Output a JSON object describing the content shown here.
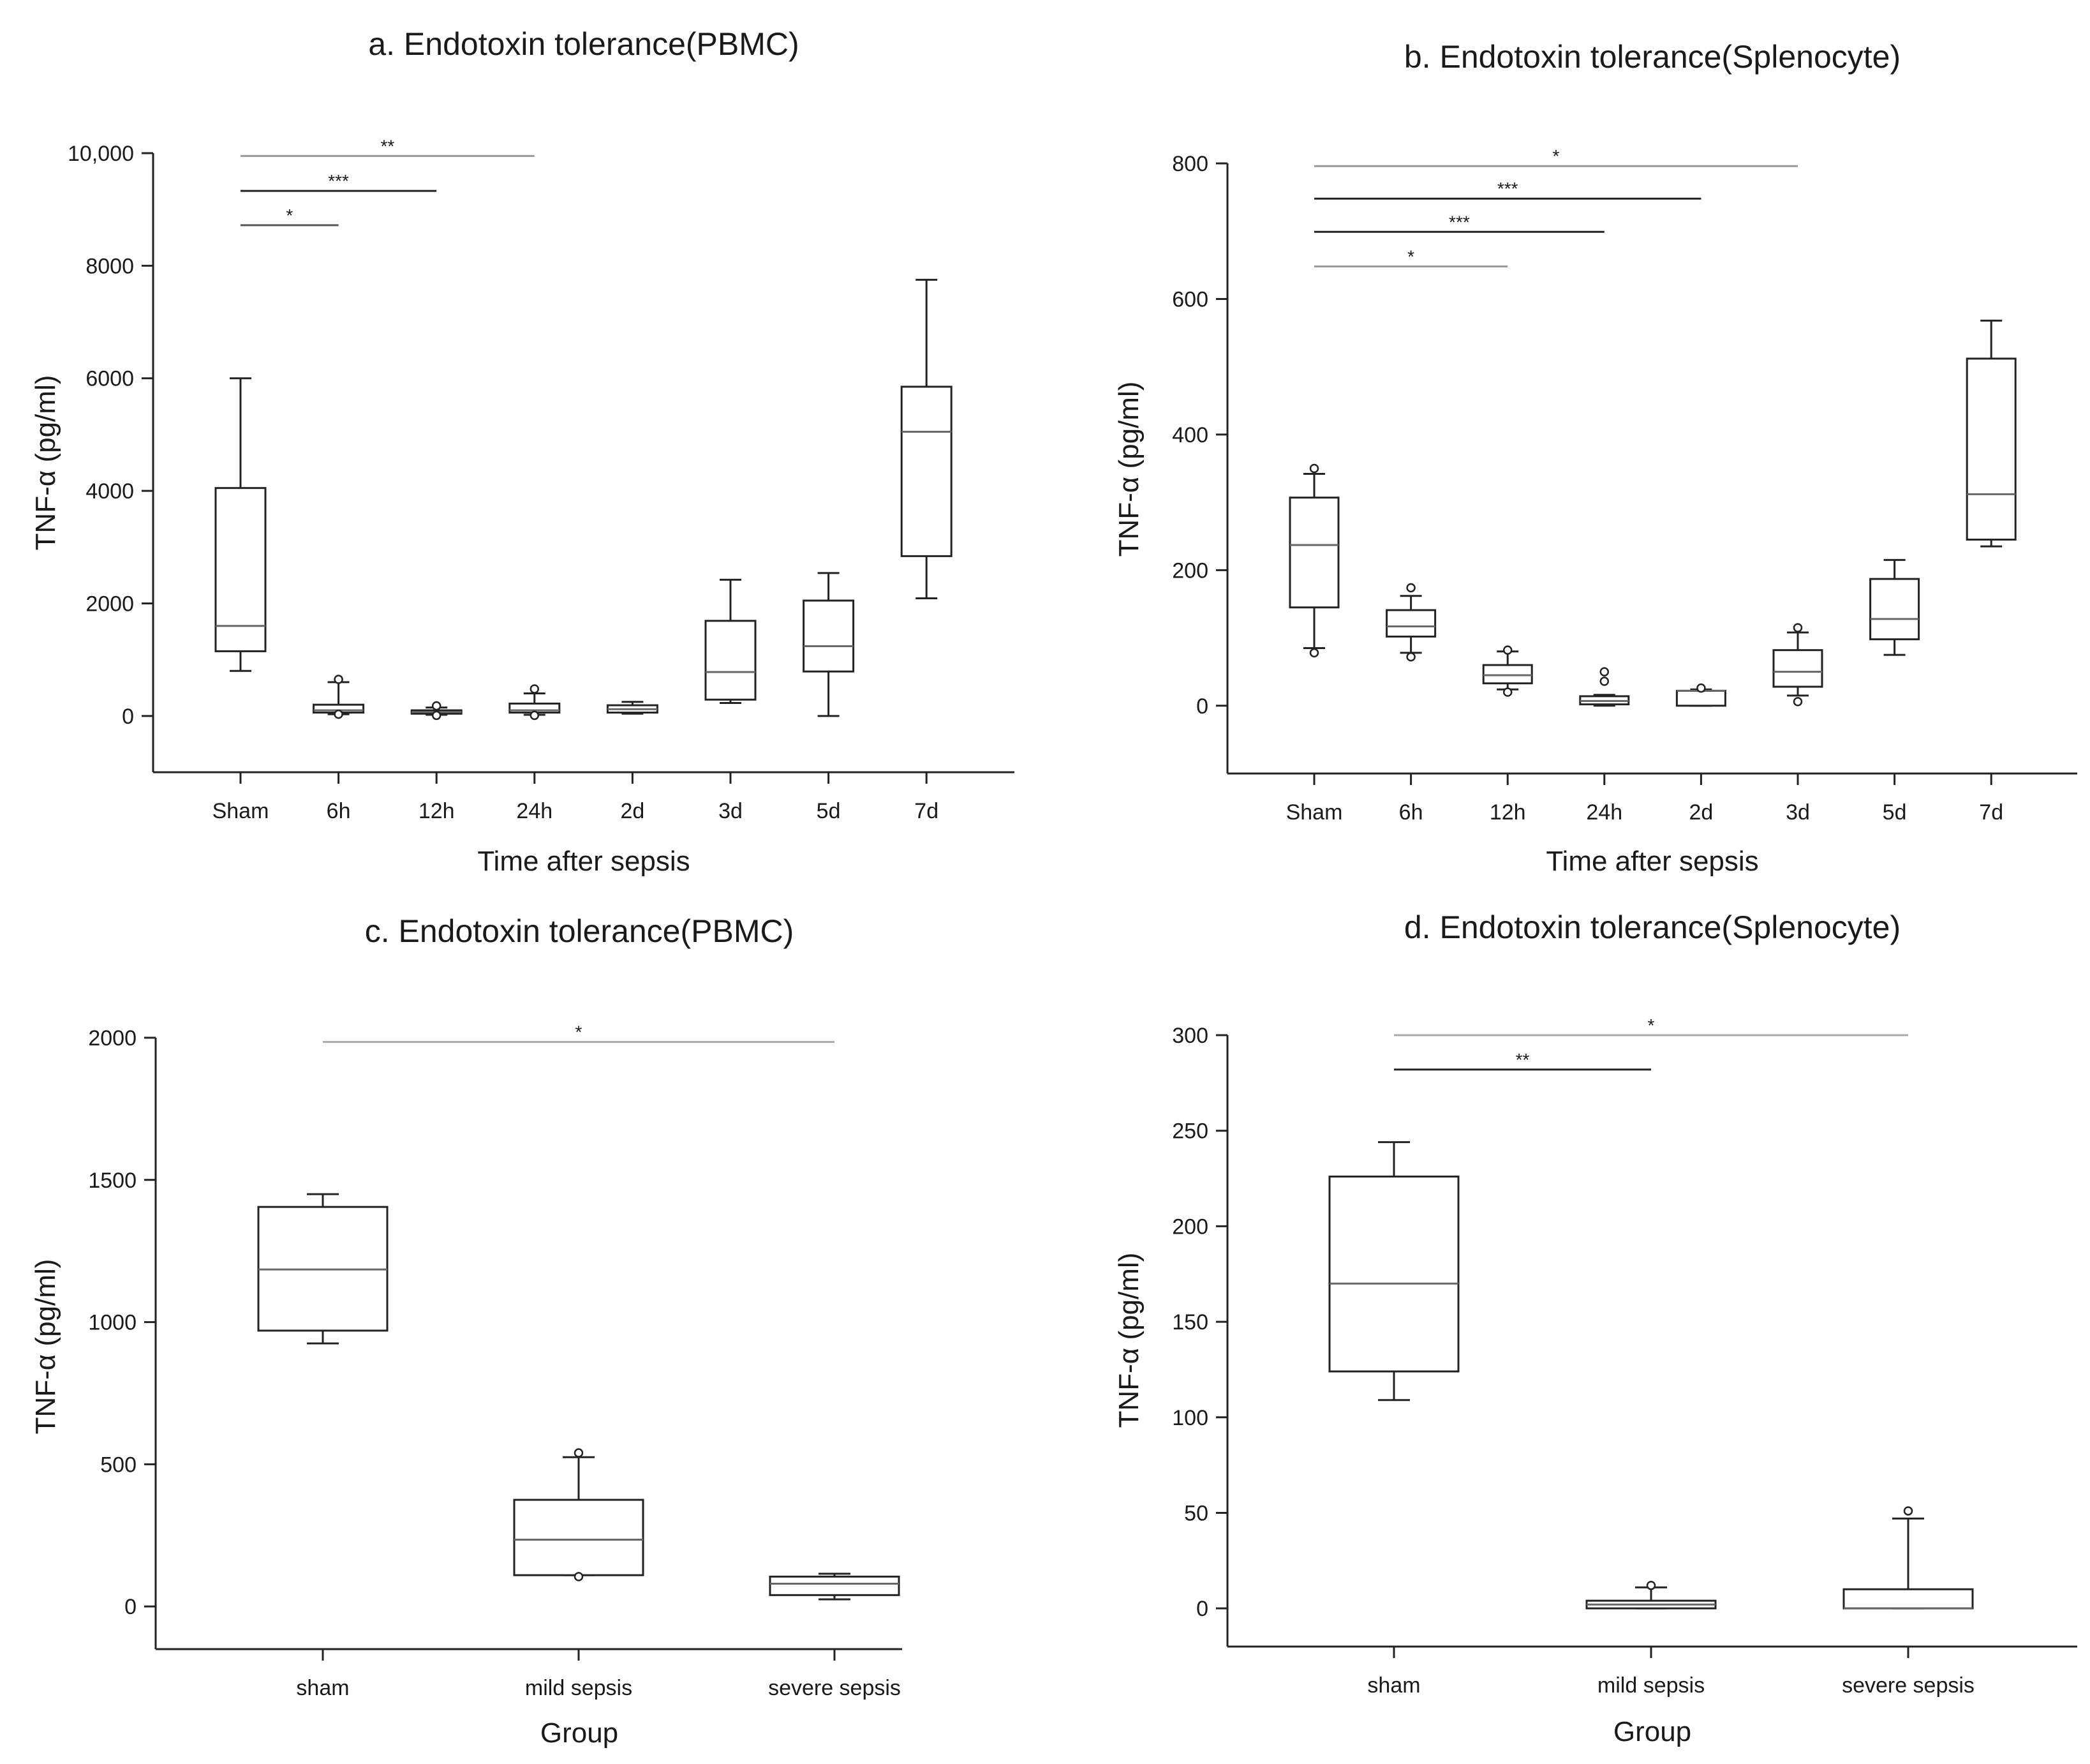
{
  "chart_data": [
    {
      "id": "a",
      "type": "box",
      "title": "a. Endotoxin tolerance(PBMC)",
      "xlabel": "Time after sepsis",
      "ylabel": "TNF-α (pg/ml)",
      "ylim": [
        -1000,
        10000
      ],
      "yticks": [
        0,
        2000,
        4000,
        6000,
        8000,
        10000
      ],
      "ytick_labels": [
        "0",
        "2000",
        "4000",
        "6000",
        "8000",
        "10,000"
      ],
      "categories": [
        "Sham",
        "6h",
        "12h",
        "24h",
        "2d",
        "3d",
        "5d",
        "7d"
      ],
      "boxes": [
        {
          "whislo": 800,
          "q1": 1150,
          "med": 1600,
          "q3": 4050,
          "whishi": 6000,
          "fliers": []
        },
        {
          "whislo": 30,
          "q1": 60,
          "med": 100,
          "q3": 200,
          "whishi": 600,
          "fliers": [
            30,
            650
          ]
        },
        {
          "whislo": 20,
          "q1": 40,
          "med": 70,
          "q3": 100,
          "whishi": 150,
          "fliers": [
            10,
            180
          ]
        },
        {
          "whislo": 20,
          "q1": 60,
          "med": 100,
          "q3": 220,
          "whishi": 400,
          "fliers": [
            10,
            480
          ]
        },
        {
          "whislo": 40,
          "q1": 60,
          "med": 120,
          "q3": 190,
          "whishi": 250,
          "fliers": []
        },
        {
          "whislo": 230,
          "q1": 290,
          "med": 780,
          "q3": 1690,
          "whishi": 2420,
          "fliers": []
        },
        {
          "whislo": 0,
          "q1": 790,
          "med": 1240,
          "q3": 2050,
          "whishi": 2540,
          "fliers": []
        },
        {
          "whislo": 2090,
          "q1": 2840,
          "med": 5050,
          "q3": 5850,
          "whishi": 7750,
          "fliers": []
        }
      ],
      "significance": [
        {
          "label": "**",
          "from": 0,
          "to": 3,
          "y": 9950,
          "color": "#999999"
        },
        {
          "label": "***",
          "from": 0,
          "to": 2,
          "y": 9330,
          "color": "#222222"
        },
        {
          "label": "*",
          "from": 0,
          "to": 1,
          "y": 8720,
          "color": "#555555"
        }
      ]
    },
    {
      "id": "b",
      "type": "box",
      "title": "b. Endotoxin tolerance(Splenocyte)",
      "xlabel": "Time after sepsis",
      "ylabel": "TNF-α (pg/ml)",
      "ylim": [
        -100,
        800
      ],
      "yticks": [
        0,
        200,
        400,
        600,
        800
      ],
      "ytick_labels": [
        "0",
        "200",
        "400",
        "600",
        "800"
      ],
      "categories": [
        "Sham",
        "6h",
        "12h",
        "24h",
        "2d",
        "3d",
        "5d",
        "7d"
      ],
      "boxes": [
        {
          "whislo": 85,
          "q1": 145,
          "med": 237,
          "q3": 307,
          "whishi": 342,
          "fliers": [
            78,
            350
          ]
        },
        {
          "whislo": 78,
          "q1": 102,
          "med": 117,
          "q3": 141,
          "whishi": 162,
          "fliers": [
            72,
            174
          ]
        },
        {
          "whislo": 24,
          "q1": 33,
          "med": 45,
          "q3": 60,
          "whishi": 80,
          "fliers": [
            20,
            82
          ]
        },
        {
          "whislo": 0,
          "q1": 2,
          "med": 7,
          "q3": 14,
          "whishi": 16,
          "fliers": [
            36,
            50
          ]
        },
        {
          "whislo": 0,
          "q1": 0,
          "med": 22,
          "q3": 22,
          "whishi": 24,
          "fliers": [
            26
          ]
        },
        {
          "whislo": 15,
          "q1": 28,
          "med": 50,
          "q3": 82,
          "whishi": 108,
          "fliers": [
            6,
            115
          ]
        },
        {
          "whislo": 75,
          "q1": 98,
          "med": 128,
          "q3": 187,
          "whishi": 215,
          "fliers": []
        },
        {
          "whislo": 235,
          "q1": 245,
          "med": 312,
          "q3": 512,
          "whishi": 568,
          "fliers": []
        }
      ],
      "significance": [
        {
          "label": "*",
          "from": 0,
          "to": 5,
          "y": 796,
          "color": "#999999"
        },
        {
          "label": "***",
          "from": 0,
          "to": 4,
          "y": 748,
          "color": "#222222"
        },
        {
          "label": "***",
          "from": 0,
          "to": 3,
          "y": 699,
          "color": "#222222"
        },
        {
          "label": "*",
          "from": 0,
          "to": 2,
          "y": 648,
          "color": "#999999"
        }
      ]
    },
    {
      "id": "c",
      "type": "box",
      "title": "c. Endotoxin tolerance(PBMC)",
      "xlabel": "Group",
      "ylabel": "TNF-α (pg/ml)",
      "ylim": [
        -150,
        2000
      ],
      "yticks": [
        0,
        500,
        1000,
        1500,
        2000
      ],
      "ytick_labels": [
        "0",
        "500",
        "1000",
        "1500",
        "2000"
      ],
      "categories": [
        "sham",
        "mild sepsis",
        "severe sepsis"
      ],
      "boxes": [
        {
          "whislo": 925,
          "q1": 970,
          "med": 1185,
          "q3": 1405,
          "whishi": 1450,
          "fliers": []
        },
        {
          "whislo": 110,
          "q1": 110,
          "med": 235,
          "q3": 375,
          "whishi": 525,
          "fliers": [
            105,
            540
          ]
        },
        {
          "whislo": 25,
          "q1": 40,
          "med": 80,
          "q3": 105,
          "whishi": 115,
          "fliers": []
        }
      ],
      "significance": [
        {
          "label": "*",
          "from": 0,
          "to": 2,
          "y": 1985,
          "color": "#aaaaaa"
        }
      ]
    },
    {
      "id": "d",
      "type": "box",
      "title": "d. Endotoxin tolerance(Splenocyte)",
      "xlabel": "Group",
      "ylabel": "TNF-α (pg/ml)",
      "ylim": [
        -20,
        300
      ],
      "yticks": [
        0,
        50,
        100,
        150,
        200,
        250,
        300
      ],
      "ytick_labels": [
        "0",
        "50",
        "100",
        "150",
        "200",
        "250",
        "300"
      ],
      "categories": [
        "sham",
        "mild sepsis",
        "severe sepsis"
      ],
      "boxes": [
        {
          "whislo": 109,
          "q1": 124,
          "med": 170,
          "q3": 226,
          "whishi": 244,
          "fliers": []
        },
        {
          "whislo": 0,
          "q1": 0,
          "med": 2,
          "q3": 4,
          "whishi": 11,
          "fliers": [
            12
          ]
        },
        {
          "whislo": 0,
          "q1": 0,
          "med": 0,
          "q3": 10,
          "whishi": 47,
          "fliers": [
            51
          ]
        }
      ],
      "significance": [
        {
          "label": "*",
          "from": 0,
          "to": 2,
          "y": 300,
          "color": "#aaaaaa"
        },
        {
          "label": "**",
          "from": 0,
          "to": 1,
          "y": 282,
          "color": "#222222"
        }
      ]
    }
  ]
}
